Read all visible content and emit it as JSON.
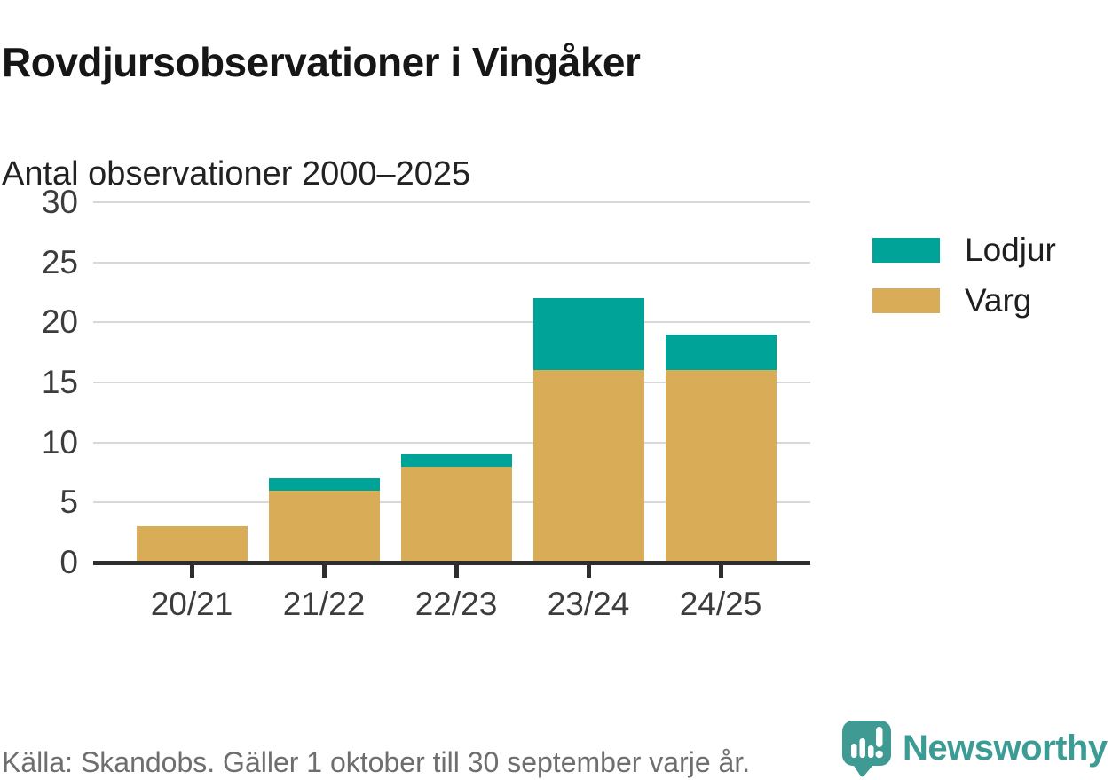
{
  "title": "Rovdjursobservationer i Vingåker",
  "subtitle": "Antal observationer 2000–2025",
  "chart_data": {
    "type": "bar",
    "stacked": true,
    "title": "Rovdjursobservationer i Vingåker",
    "subtitle": "Antal observationer 2000–2025",
    "categories": [
      "20/21",
      "21/22",
      "22/23",
      "23/24",
      "24/25"
    ],
    "series": [
      {
        "name": "Varg",
        "color": "#d9ad57",
        "values": [
          3,
          6,
          8,
          16,
          16
        ]
      },
      {
        "name": "Lodjur",
        "color": "#00a398",
        "values": [
          0,
          1,
          1,
          6,
          3
        ]
      }
    ],
    "totals": [
      3,
      7,
      9,
      22,
      19
    ],
    "xlabel": "",
    "ylabel": "",
    "ylim": [
      0,
      30
    ],
    "yticks": [
      0,
      5,
      10,
      15,
      20,
      25,
      30
    ],
    "grid": "horizontal",
    "legend_position": "right"
  },
  "legend": {
    "items": [
      {
        "label": "Lodjur",
        "color": "#00a398"
      },
      {
        "label": "Varg",
        "color": "#d9ad57"
      }
    ]
  },
  "footer": {
    "source": "Källa: Skandobs. Gäller 1 oktober till 30 september varje år."
  },
  "branding": {
    "name": "Newsworthy",
    "icon": "newsworthy-bar-chart-bubble-icon",
    "color": "#3f9a93"
  },
  "colors": {
    "lodjur": "#00a398",
    "varg": "#d9ad57",
    "gridline": "#d8d8d8",
    "axis": "#2e2e2e",
    "source_text": "#6e6e6e",
    "brand_teal": "#3f9a93"
  }
}
